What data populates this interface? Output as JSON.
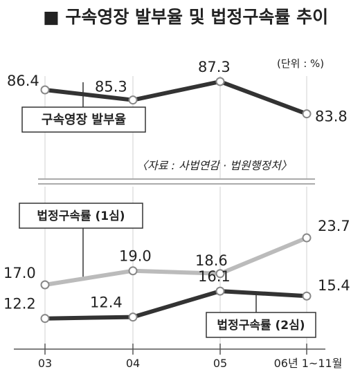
{
  "title": "■ 구속영장 발부율 및 법정구속률 추이",
  "unit": "(단위 : %)",
  "source": "〈자료 : 사법연감 · 법원행정처〉",
  "chart_data": {
    "type": "line",
    "categories": [
      "03",
      "04",
      "05",
      "06년 1~11월"
    ],
    "series": [
      {
        "name": "구속영장 발부율",
        "values": [
          86.4,
          85.3,
          87.3,
          83.8
        ],
        "color": "#333333"
      },
      {
        "name": "법정구속률 (1심)",
        "values": [
          17.0,
          19.0,
          18.6,
          23.7
        ],
        "color": "#bbbbbb"
      },
      {
        "name": "법정구속률 (2심)",
        "values": [
          12.2,
          12.4,
          16.1,
          15.4
        ],
        "color": "#333333"
      }
    ],
    "value_labels": [
      [
        "86.4",
        "85.3",
        "87.3",
        "83.8"
      ],
      [
        "17.0",
        "19.0",
        "18.6",
        "23.7"
      ],
      [
        "12.2",
        "12.4",
        "16.1",
        "15.4"
      ]
    ],
    "axis_break": true,
    "grid": "vertical"
  }
}
